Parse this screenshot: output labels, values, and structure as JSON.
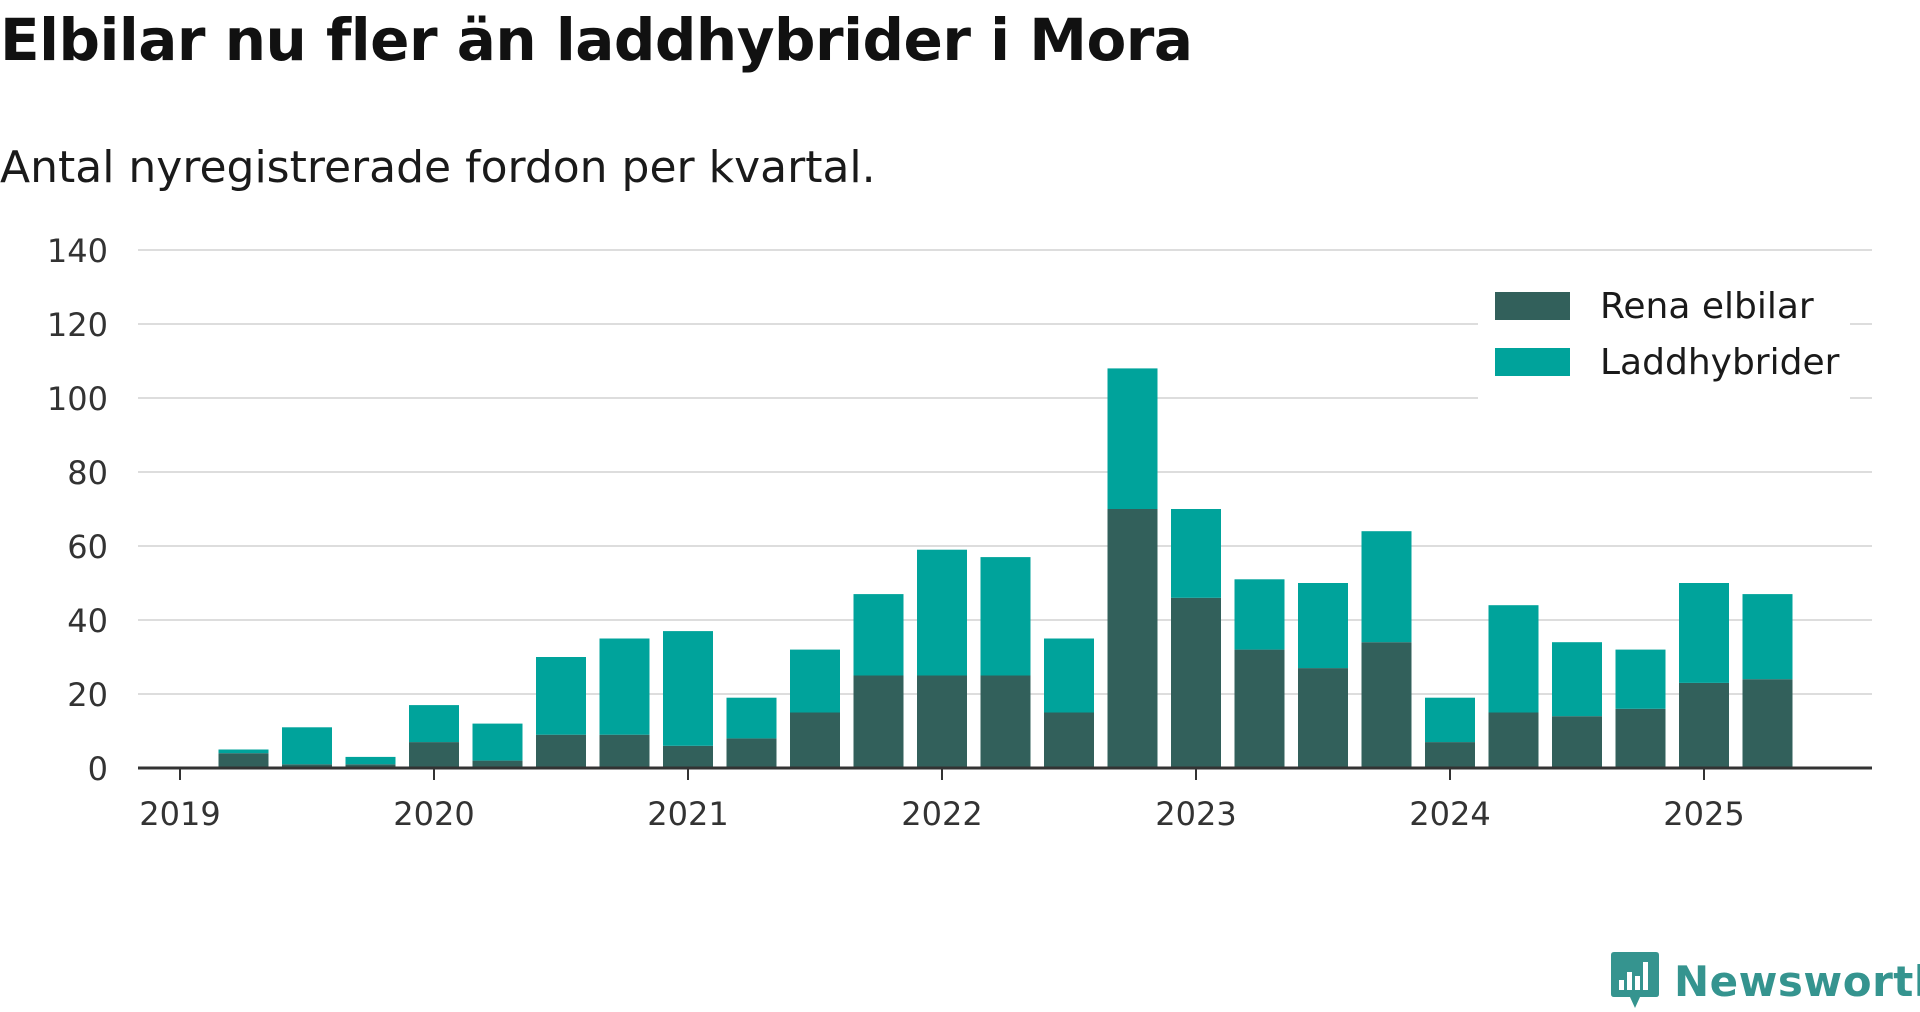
{
  "chart_data": {
    "type": "bar",
    "stacked": true,
    "title": "Elbilar nu fler än laddhybrider i Mora",
    "subtitle": "Antal nyregistrerade fordon per kvartal.",
    "x_tick_labels": [
      "2019",
      "2020",
      "2021",
      "2022",
      "2023",
      "2024",
      "2025"
    ],
    "y_ticks": [
      0,
      20,
      40,
      60,
      80,
      100,
      120,
      140
    ],
    "ylim": [
      0,
      140
    ],
    "grid": true,
    "legend_position": "top-right",
    "categories": [
      "2019 Q1",
      "2019 Q2",
      "2019 Q3",
      "2019 Q4",
      "2020 Q1",
      "2020 Q2",
      "2020 Q3",
      "2020 Q4",
      "2021 Q1",
      "2021 Q2",
      "2021 Q3",
      "2021 Q4",
      "2022 Q1",
      "2022 Q2",
      "2022 Q3",
      "2022 Q4",
      "2023 Q1",
      "2023 Q2",
      "2023 Q3",
      "2023 Q4",
      "2024 Q1",
      "2024 Q2",
      "2024 Q3",
      "2024 Q4",
      "2025 Q1",
      "2025 Q2"
    ],
    "series": [
      {
        "name": "Rena elbilar",
        "color": "#32605b",
        "values": [
          0,
          4,
          1,
          1,
          7,
          2,
          9,
          9,
          6,
          8,
          15,
          25,
          25,
          25,
          15,
          70,
          46,
          32,
          27,
          34,
          7,
          15,
          14,
          16,
          23,
          24
        ]
      },
      {
        "name": "Laddhybrider",
        "color": "#00a39b",
        "values": [
          0,
          1,
          10,
          2,
          10,
          10,
          21,
          26,
          31,
          11,
          17,
          22,
          34,
          32,
          20,
          38,
          24,
          19,
          23,
          30,
          12,
          29,
          20,
          16,
          27,
          23
        ]
      }
    ]
  },
  "brand": {
    "name": "Newsworthy",
    "color": "#35948f",
    "icon": "newsworthy-logo-icon"
  },
  "style": {
    "grid_color": "#dddddd",
    "axis_color": "#333333",
    "text_color": "#333333"
  }
}
